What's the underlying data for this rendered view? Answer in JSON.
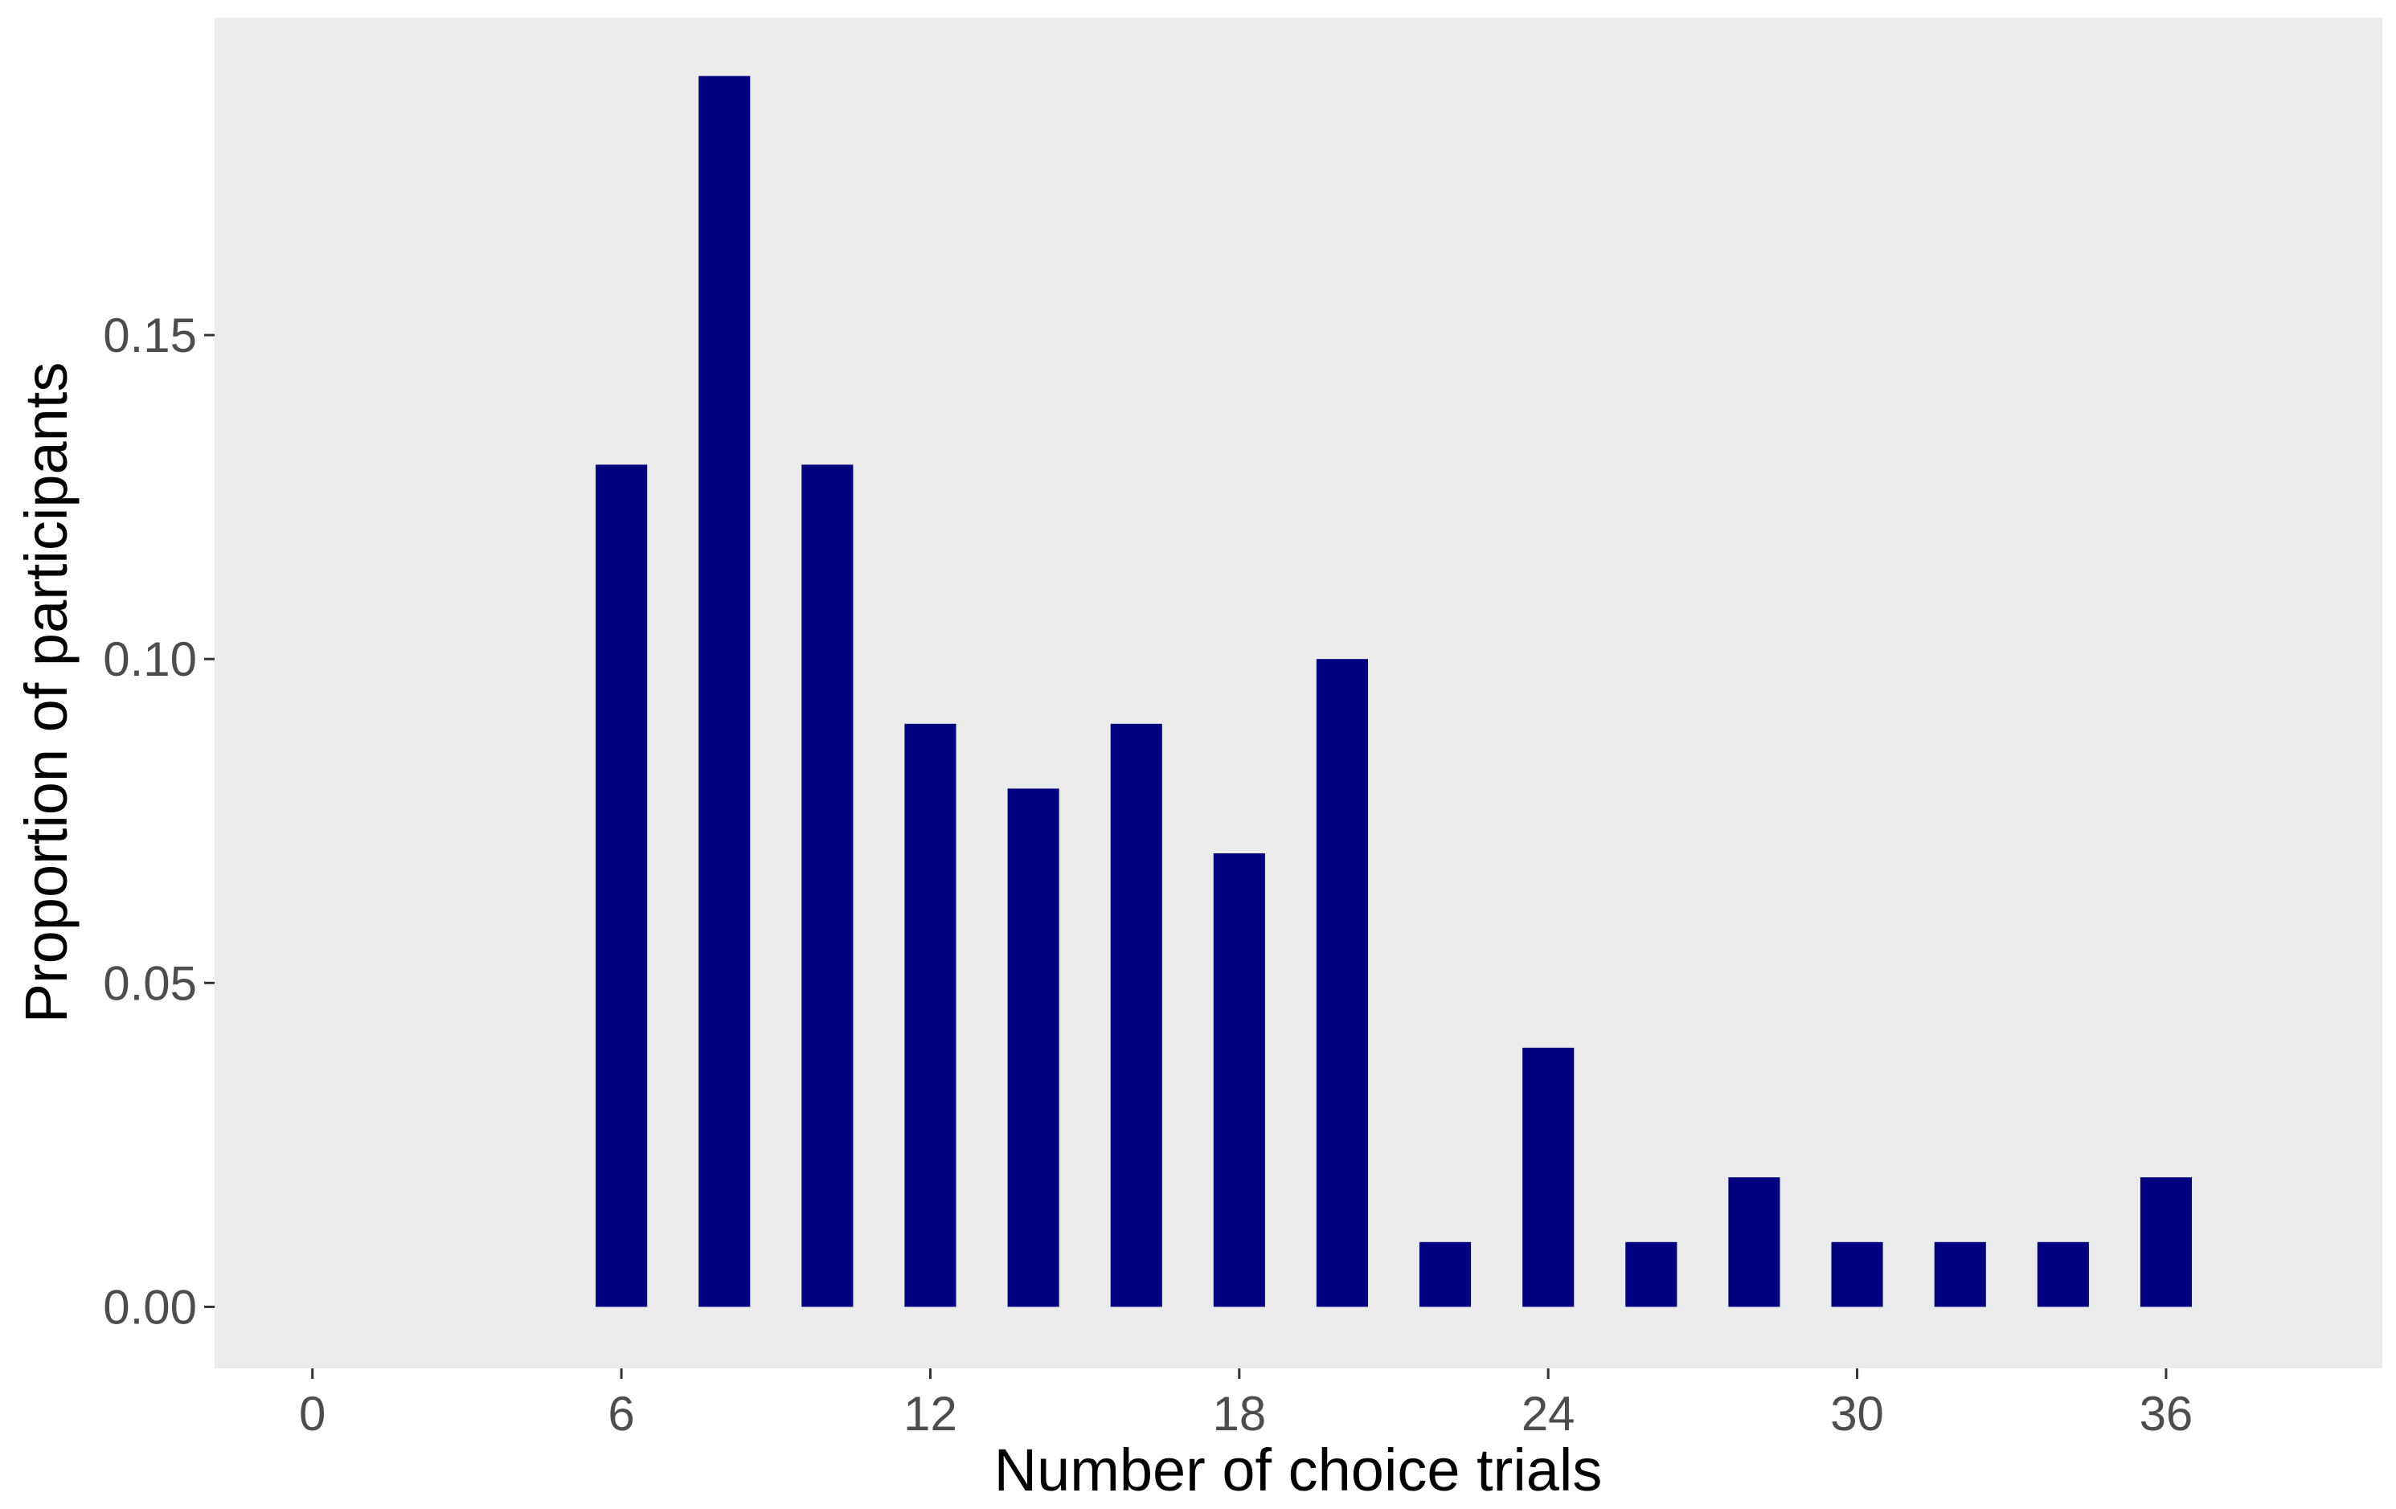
{
  "chart_data": {
    "type": "bar",
    "title": "",
    "xlabel": "Number of choice trials",
    "ylabel": "Proportion of participants",
    "x": [
      6,
      8,
      10,
      12,
      14,
      16,
      18,
      20,
      22,
      24,
      26,
      28,
      30,
      32,
      34,
      36
    ],
    "values": [
      0.13,
      0.19,
      0.13,
      0.09,
      0.08,
      0.09,
      0.07,
      0.1,
      0.01,
      0.04,
      0.01,
      0.02,
      0.01,
      0.01,
      0.01,
      0.02
    ],
    "xlim": [
      -1.9,
      40.2
    ],
    "ylim": [
      -0.0095,
      0.199
    ],
    "xticks": [
      0,
      6,
      12,
      18,
      24,
      30,
      36
    ],
    "xtick_labels": [
      "0",
      "6",
      "12",
      "18",
      "24",
      "30",
      "36"
    ],
    "yticks": [
      0,
      0.05,
      0.1,
      0.15
    ],
    "ytick_labels": [
      "0.00",
      "0.05",
      "0.10",
      "0.15"
    ],
    "bar_width_units": 1,
    "grid": false,
    "legend": "none",
    "colors": {
      "bar": "#000080",
      "panel": "#EBEBEB",
      "tick_label": "#4D4D4D",
      "axis_title": "#000000"
    }
  }
}
